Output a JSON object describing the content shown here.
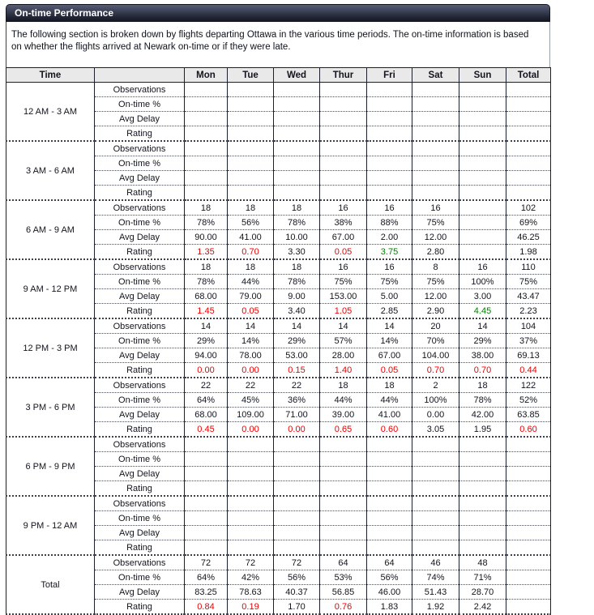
{
  "header": {
    "title": "On-time Performance"
  },
  "description": "The following section is broken down by flights departing Ottawa in the various time periods. The on-time information is based on whether the flights arrived at Newark on-time or if they were late.",
  "colors": {
    "title_bar_top": "#565c72",
    "title_bar_bottom": "#13151f",
    "header_row_bg": "#e9e9e9",
    "table_border": "#1c1f2d",
    "rating_bad": "#ee0000",
    "rating_good": "#008000",
    "text": "#14141e"
  },
  "table": {
    "columns": [
      "Time",
      "",
      "Mon",
      "Tue",
      "Wed",
      "Thur",
      "Fri",
      "Sat",
      "Sun",
      "Total"
    ],
    "groups": [
      {
        "time": "12 AM - 3 AM",
        "rows": [
          {
            "label": "Observations",
            "values": [
              "",
              "",
              "",
              "",
              "",
              "",
              "",
              ""
            ]
          },
          {
            "label": "On-time %",
            "values": [
              "",
              "",
              "",
              "",
              "",
              "",
              "",
              ""
            ]
          },
          {
            "label": "Avg Delay",
            "values": [
              "",
              "",
              "",
              "",
              "",
              "",
              "",
              ""
            ]
          },
          {
            "label": "Rating",
            "values": [
              "",
              "",
              "",
              "",
              "",
              "",
              "",
              ""
            ],
            "colors": [
              "",
              "",
              "",
              "",
              "",
              "",
              "",
              ""
            ]
          }
        ]
      },
      {
        "time": "3 AM - 6 AM",
        "rows": [
          {
            "label": "Observations",
            "values": [
              "",
              "",
              "",
              "",
              "",
              "",
              "",
              ""
            ]
          },
          {
            "label": "On-time %",
            "values": [
              "",
              "",
              "",
              "",
              "",
              "",
              "",
              ""
            ]
          },
          {
            "label": "Avg Delay",
            "values": [
              "",
              "",
              "",
              "",
              "",
              "",
              "",
              ""
            ]
          },
          {
            "label": "Rating",
            "values": [
              "",
              "",
              "",
              "",
              "",
              "",
              "",
              ""
            ],
            "colors": [
              "",
              "",
              "",
              "",
              "",
              "",
              "",
              ""
            ]
          }
        ]
      },
      {
        "time": "6 AM - 9 AM",
        "rows": [
          {
            "label": "Observations",
            "values": [
              "18",
              "18",
              "18",
              "16",
              "16",
              "16",
              "",
              "102"
            ]
          },
          {
            "label": "On-time %",
            "values": [
              "78%",
              "56%",
              "78%",
              "38%",
              "88%",
              "75%",
              "",
              "69%"
            ]
          },
          {
            "label": "Avg Delay",
            "values": [
              "90.00",
              "41.00",
              "10.00",
              "67.00",
              "2.00",
              "12.00",
              "",
              "46.25"
            ]
          },
          {
            "label": "Rating",
            "values": [
              "1.35",
              "0.70",
              "3.30",
              "0.05",
              "3.75",
              "2.80",
              "",
              "1.98"
            ],
            "colors": [
              "red",
              "red",
              "",
              "red",
              "green",
              "",
              "",
              ""
            ]
          }
        ]
      },
      {
        "time": "9 AM - 12 PM",
        "rows": [
          {
            "label": "Observations",
            "values": [
              "18",
              "18",
              "18",
              "16",
              "16",
              "8",
              "16",
              "110"
            ]
          },
          {
            "label": "On-time %",
            "values": [
              "78%",
              "44%",
              "78%",
              "75%",
              "75%",
              "75%",
              "100%",
              "75%"
            ]
          },
          {
            "label": "Avg Delay",
            "values": [
              "68.00",
              "79.00",
              "9.00",
              "153.00",
              "5.00",
              "12.00",
              "3.00",
              "43.47"
            ]
          },
          {
            "label": "Rating",
            "values": [
              "1.45",
              "0.05",
              "3.40",
              "1.05",
              "2.85",
              "2.90",
              "4.45",
              "2.23"
            ],
            "colors": [
              "red",
              "red",
              "",
              "red",
              "",
              "",
              "green",
              ""
            ]
          }
        ]
      },
      {
        "time": "12 PM - 3 PM",
        "rows": [
          {
            "label": "Observations",
            "values": [
              "14",
              "14",
              "14",
              "14",
              "14",
              "20",
              "14",
              "104"
            ]
          },
          {
            "label": "On-time %",
            "values": [
              "29%",
              "14%",
              "29%",
              "57%",
              "14%",
              "70%",
              "29%",
              "37%"
            ]
          },
          {
            "label": "Avg Delay",
            "values": [
              "94.00",
              "78.00",
              "53.00",
              "28.00",
              "67.00",
              "104.00",
              "38.00",
              "69.13"
            ]
          },
          {
            "label": "Rating",
            "values": [
              "0.00",
              "0.00",
              "0.15",
              "1.40",
              "0.05",
              "0.70",
              "0.70",
              "0.44"
            ],
            "colors": [
              "red",
              "red",
              "red",
              "red",
              "red",
              "red",
              "red",
              "red"
            ]
          }
        ]
      },
      {
        "time": "3 PM - 6 PM",
        "rows": [
          {
            "label": "Observations",
            "values": [
              "22",
              "22",
              "22",
              "18",
              "18",
              "2",
              "18",
              "122"
            ]
          },
          {
            "label": "On-time %",
            "values": [
              "64%",
              "45%",
              "36%",
              "44%",
              "44%",
              "100%",
              "78%",
              "52%"
            ]
          },
          {
            "label": "Avg Delay",
            "values": [
              "68.00",
              "109.00",
              "71.00",
              "39.00",
              "41.00",
              "0.00",
              "42.00",
              "63.85"
            ]
          },
          {
            "label": "Rating",
            "values": [
              "0.45",
              "0.00",
              "0.00",
              "0.65",
              "0.60",
              "3.05",
              "1.95",
              "0.60"
            ],
            "colors": [
              "red",
              "red",
              "red",
              "red",
              "red",
              "",
              "",
              "red"
            ]
          }
        ]
      },
      {
        "time": "6 PM - 9 PM",
        "rows": [
          {
            "label": "Observations",
            "values": [
              "",
              "",
              "",
              "",
              "",
              "",
              "",
              ""
            ]
          },
          {
            "label": "On-time %",
            "values": [
              "",
              "",
              "",
              "",
              "",
              "",
              "",
              ""
            ]
          },
          {
            "label": "Avg Delay",
            "values": [
              "",
              "",
              "",
              "",
              "",
              "",
              "",
              ""
            ]
          },
          {
            "label": "Rating",
            "values": [
              "",
              "",
              "",
              "",
              "",
              "",
              "",
              ""
            ],
            "colors": [
              "",
              "",
              "",
              "",
              "",
              "",
              "",
              ""
            ]
          }
        ]
      },
      {
        "time": "9 PM - 12 AM",
        "rows": [
          {
            "label": "Observations",
            "values": [
              "",
              "",
              "",
              "",
              "",
              "",
              "",
              ""
            ]
          },
          {
            "label": "On-time %",
            "values": [
              "",
              "",
              "",
              "",
              "",
              "",
              "",
              ""
            ]
          },
          {
            "label": "Avg Delay",
            "values": [
              "",
              "",
              "",
              "",
              "",
              "",
              "",
              ""
            ]
          },
          {
            "label": "Rating",
            "values": [
              "",
              "",
              "",
              "",
              "",
              "",
              "",
              ""
            ],
            "colors": [
              "",
              "",
              "",
              "",
              "",
              "",
              "",
              ""
            ]
          }
        ]
      },
      {
        "time": "Total",
        "rows": [
          {
            "label": "Observations",
            "values": [
              "72",
              "72",
              "72",
              "64",
              "64",
              "46",
              "48",
              ""
            ]
          },
          {
            "label": "On-time %",
            "values": [
              "64%",
              "42%",
              "56%",
              "53%",
              "56%",
              "74%",
              "71%",
              ""
            ]
          },
          {
            "label": "Avg Delay",
            "values": [
              "83.25",
              "78.63",
              "40.37",
              "56.85",
              "46.00",
              "51.43",
              "28.70",
              ""
            ]
          },
          {
            "label": "Rating",
            "values": [
              "0.84",
              "0.19",
              "1.70",
              "0.76",
              "1.83",
              "1.92",
              "2.42",
              ""
            ],
            "colors": [
              "red",
              "red",
              "",
              "red",
              "",
              "",
              "",
              ""
            ]
          }
        ]
      }
    ]
  }
}
